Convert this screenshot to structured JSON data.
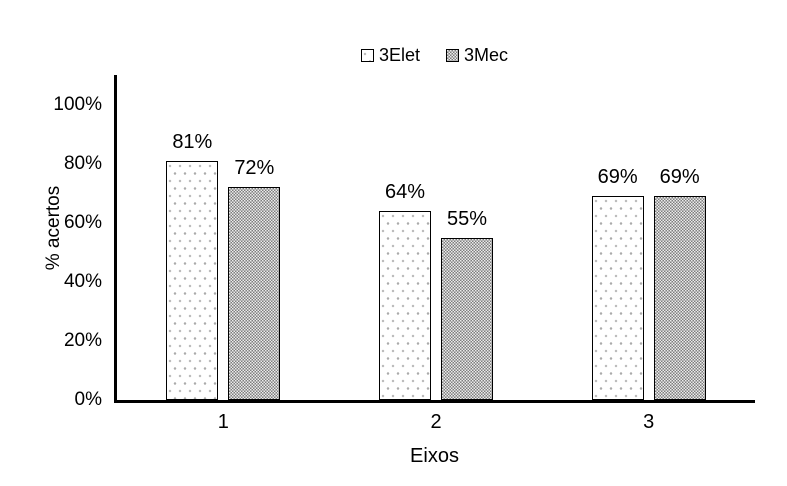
{
  "chart_data": {
    "type": "bar",
    "title": "",
    "categories": [
      "1",
      "2",
      "3"
    ],
    "series": [
      {
        "name": "3Elet",
        "values": [
          81,
          64,
          69
        ],
        "data_labels": [
          "81%",
          "64%",
          "69%"
        ],
        "fill": "white-dotted"
      },
      {
        "name": "3Mec",
        "values": [
          72,
          55,
          69
        ],
        "data_labels": [
          "72%",
          "55%",
          "69%"
        ],
        "fill": "gray-trellis"
      }
    ],
    "xlabel": "Eixos",
    "ylabel": "% acertos",
    "ylim": [
      0,
      110
    ],
    "yticks": [
      {
        "value": 0,
        "label": "0%"
      },
      {
        "value": 20,
        "label": "20%"
      },
      {
        "value": 40,
        "label": "40%"
      },
      {
        "value": 60,
        "label": "60%"
      },
      {
        "value": 80,
        "label": "80%"
      },
      {
        "value": 100,
        "label": "100%"
      }
    ],
    "legend": {
      "position": "top-center",
      "entries": [
        "3Elet",
        "3Mec"
      ]
    },
    "grid": false
  },
  "colors": {
    "background": "#ffffff",
    "axis": "#000000",
    "text": "#000000",
    "elet_dot": "#ababab",
    "mec_square": "#7e7e7e"
  }
}
